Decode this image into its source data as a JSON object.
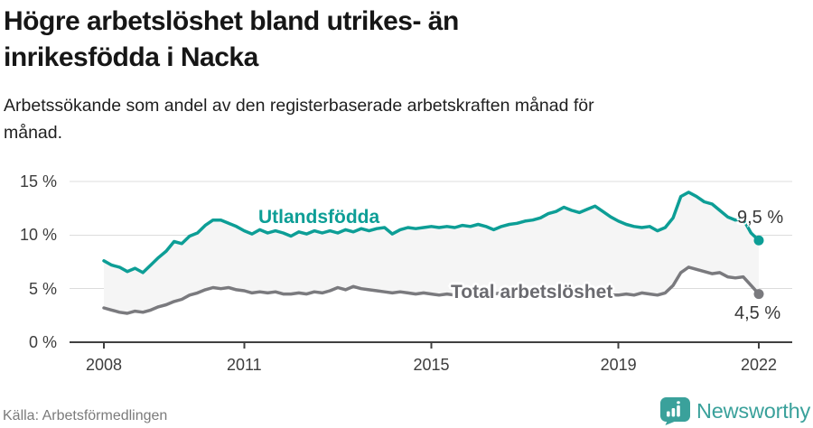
{
  "header": {
    "title_line1": "Högre arbetslöshet bland utrikes- än",
    "title_line2": "inrikesfödda i Nacka",
    "subtitle_line1": "Arbetssökande som andel av den registerbaserade arbetskraften månad för",
    "subtitle_line2": "månad."
  },
  "chart_data": {
    "type": "line",
    "title": "Högre arbetslöshet bland utrikes- än inrikesfödda i Nacka",
    "subtitle": "Arbetssökande som andel av den registerbaserade arbetskraften månad för månad.",
    "x_unit": "year",
    "x_start_year": 2008,
    "points_per_year": 6,
    "xlim": [
      2008.0,
      2022.08
    ],
    "ylim": [
      0,
      15
    ],
    "grid": "horizontal",
    "legend": "inline-labels",
    "area_fill_between_series": true,
    "y_ticks": [
      "15 %",
      "10 %",
      "5 %",
      "0 %"
    ],
    "y_tick_values": [
      15,
      10,
      5,
      0
    ],
    "x_ticks": [
      "2008",
      "2011",
      "2015",
      "2019",
      "2022"
    ],
    "x_tick_values": [
      2008,
      2011,
      2015,
      2019,
      2022
    ],
    "series": [
      {
        "name": "Utlandsfödda",
        "color": "#0d9e96",
        "end_label": "9,5 %",
        "values": [
          7.6,
          7.2,
          7.0,
          6.6,
          6.9,
          6.5,
          7.2,
          7.9,
          8.5,
          9.4,
          9.2,
          9.9,
          10.2,
          10.9,
          11.4,
          11.4,
          11.1,
          10.8,
          10.4,
          10.1,
          10.5,
          10.2,
          10.4,
          10.2,
          9.9,
          10.3,
          10.1,
          10.4,
          10.2,
          10.4,
          10.2,
          10.5,
          10.3,
          10.6,
          10.4,
          10.6,
          10.7,
          10.1,
          10.5,
          10.7,
          10.6,
          10.7,
          10.8,
          10.7,
          10.8,
          10.7,
          10.9,
          10.8,
          11.0,
          10.8,
          10.5,
          10.8,
          11.0,
          11.1,
          11.3,
          11.4,
          11.6,
          12.0,
          12.2,
          12.6,
          12.3,
          12.1,
          12.4,
          12.7,
          12.2,
          11.7,
          11.3,
          11.0,
          10.8,
          10.7,
          10.8,
          10.4,
          10.7,
          11.6,
          13.6,
          14.0,
          13.6,
          13.1,
          12.9,
          12.3,
          11.7,
          11.4,
          11.5,
          10.2,
          9.5
        ]
      },
      {
        "name": "Total arbetslöshet",
        "color": "#7a7a7e",
        "end_label": "4,5 %",
        "values": [
          3.2,
          3.0,
          2.8,
          2.7,
          2.9,
          2.8,
          3.0,
          3.3,
          3.5,
          3.8,
          4.0,
          4.4,
          4.6,
          4.9,
          5.1,
          5.0,
          5.1,
          4.9,
          4.8,
          4.6,
          4.7,
          4.6,
          4.7,
          4.5,
          4.5,
          4.6,
          4.5,
          4.7,
          4.6,
          4.8,
          5.1,
          4.9,
          5.2,
          5.0,
          4.9,
          4.8,
          4.7,
          4.6,
          4.7,
          4.6,
          4.5,
          4.6,
          4.5,
          4.4,
          4.5,
          4.4,
          4.5,
          4.4,
          4.5,
          4.4,
          4.5,
          4.6,
          4.5,
          4.6,
          4.6,
          4.5,
          4.6,
          4.7,
          4.6,
          4.7,
          4.7,
          4.6,
          4.5,
          4.6,
          4.5,
          4.4,
          4.4,
          4.5,
          4.4,
          4.6,
          4.5,
          4.4,
          4.6,
          5.3,
          6.5,
          7.0,
          6.8,
          6.6,
          6.4,
          6.5,
          6.1,
          6.0,
          6.1,
          5.3,
          4.5
        ]
      }
    ],
    "source": "Källa: Arbetsförmedlingen"
  },
  "annotations": {
    "series1_label": "Utlandsfödda",
    "series2_label": "Total arbetslöshet",
    "series1_end_value": "9,5 %",
    "series2_end_value": "4,5 %"
  },
  "footer": {
    "source": "Källa: Arbetsförmedlingen",
    "brand": "Newsworthy"
  },
  "colors": {
    "accent_teal": "#0d9e96",
    "line_gray": "#7a7a7e",
    "series_label_gray": "#6b6b70",
    "band_fill": "#f5f5f5",
    "axis_dark": "#404040",
    "gridline": "#dcdcdc",
    "brand_teal": "#3aa19b"
  }
}
